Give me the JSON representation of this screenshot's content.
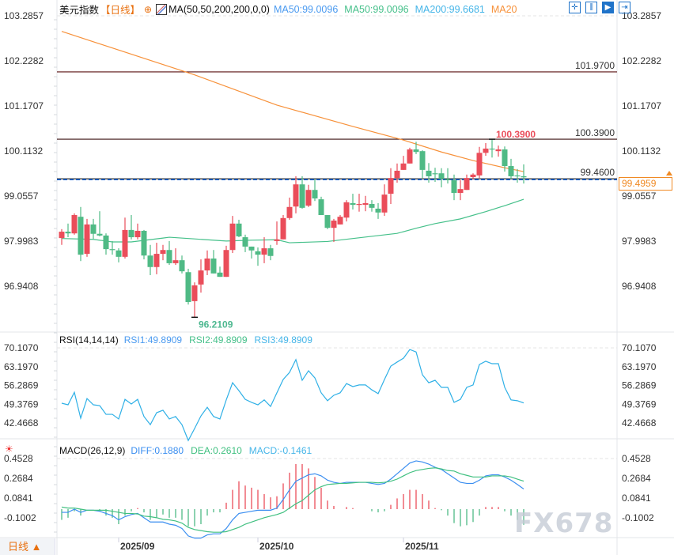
{
  "header": {
    "title": "美元指数",
    "period_tag": "【日线】",
    "ma_params": "MA(50,50,200,200,0,0)",
    "legends": [
      {
        "text": "MA50:99.0096",
        "color": "#4a9af0"
      },
      {
        "text": "MA50:99.0096",
        "color": "#45c08a"
      },
      {
        "text": "MA200:99.6681",
        "color": "#45b5e8"
      },
      {
        "text": "MA20",
        "color": "#f7913a"
      }
    ]
  },
  "toolbar": {
    "icons": [
      "crosshair-icon",
      "bar-range-icon",
      "play-icon",
      "exit-icon"
    ]
  },
  "rsi_header": {
    "title": "RSI(14,14,14)",
    "values": [
      {
        "text": "RSI1:49.8909",
        "color": "#4a9af0"
      },
      {
        "text": "RSI2:49.8909",
        "color": "#45c08a"
      },
      {
        "text": "RSI3:49.8909",
        "color": "#45b5e8"
      }
    ]
  },
  "macd_header": {
    "title": "MACD(26,12,9)",
    "values": [
      {
        "text": "DIFF:0.1880",
        "color": "#3a8ef0"
      },
      {
        "text": "DEA:0.2610",
        "color": "#40c080"
      },
      {
        "text": "MACD:-0.1461",
        "color": "#45b5e8"
      }
    ]
  },
  "period_button": "日线 ▲",
  "watermark": "FX678",
  "colors": {
    "up": "#ea4d5a",
    "down": "#4fba85",
    "ma_orange": "#f7913a",
    "ma_green": "#45c08a",
    "rsi": "#2fb0e6",
    "diff": "#3a8ef0",
    "dea": "#40c080",
    "accent": "#f08a24"
  },
  "chart_data": [
    {
      "type": "candlestick",
      "name": "美元指数",
      "ylim": [
        96.21,
        103.2857
      ],
      "yticks": [
        "103.2857",
        "102.2282",
        "101.1707",
        "100.1132",
        "99.0557",
        "97.9983",
        "96.9408"
      ],
      "xticks": [
        {
          "index": 9,
          "label": "2025/09"
        },
        {
          "index": 31,
          "label": "2025/10"
        },
        {
          "index": 54,
          "label": "2025/11"
        }
      ],
      "ohlc": [
        [
          98.07,
          98.28,
          97.91,
          98.22
        ],
        [
          98.22,
          98.41,
          98.09,
          98.18
        ],
        [
          98.18,
          98.65,
          98.15,
          98.61
        ],
        [
          98.57,
          98.8,
          97.53,
          97.68
        ],
        [
          97.7,
          98.52,
          97.63,
          98.39
        ],
        [
          98.39,
          98.52,
          98.05,
          98.17
        ],
        [
          98.17,
          98.7,
          98.11,
          98.13
        ],
        [
          98.13,
          98.18,
          97.68,
          97.81
        ],
        [
          97.81,
          98.0,
          97.68,
          97.79
        ],
        [
          97.78,
          97.83,
          97.5,
          97.63
        ],
        [
          97.63,
          98.55,
          97.59,
          98.26
        ],
        [
          98.26,
          98.61,
          98.04,
          98.09
        ],
        [
          98.09,
          98.41,
          98.04,
          98.24
        ],
        [
          98.24,
          98.26,
          97.57,
          97.66
        ],
        [
          97.66,
          97.91,
          97.2,
          97.39
        ],
        [
          97.39,
          97.96,
          97.22,
          97.7
        ],
        [
          97.7,
          97.91,
          97.55,
          97.79
        ],
        [
          97.79,
          98.0,
          97.44,
          97.48
        ],
        [
          97.48,
          97.83,
          97.44,
          97.55
        ],
        [
          97.55,
          97.66,
          97.24,
          97.29
        ],
        [
          97.27,
          97.35,
          96.51,
          96.57
        ],
        [
          96.59,
          97.03,
          96.2109,
          96.96
        ],
        [
          96.98,
          97.57,
          96.79,
          97.31
        ],
        [
          97.31,
          97.78,
          97.2,
          97.59
        ],
        [
          97.59,
          97.79,
          97.24,
          97.24
        ],
        [
          97.26,
          97.4,
          97.16,
          97.16
        ],
        [
          97.16,
          97.89,
          97.16,
          97.79
        ],
        [
          97.79,
          98.59,
          97.72,
          98.41
        ],
        [
          98.41,
          98.5,
          98.09,
          98.11
        ],
        [
          98.09,
          98.15,
          97.74,
          97.87
        ],
        [
          97.87,
          97.87,
          97.59,
          97.78
        ],
        [
          97.76,
          97.85,
          97.42,
          97.68
        ],
        [
          97.68,
          98.09,
          97.48,
          97.83
        ],
        [
          97.83,
          97.91,
          97.55,
          97.65
        ],
        [
          98.0,
          98.46,
          97.91,
          98.04
        ],
        [
          98.04,
          98.61,
          98.04,
          98.54
        ],
        [
          98.54,
          99.02,
          98.5,
          98.8
        ],
        [
          98.81,
          99.52,
          98.65,
          99.33
        ],
        [
          99.33,
          99.52,
          98.76,
          98.78
        ],
        [
          98.83,
          99.32,
          98.8,
          99.2
        ],
        [
          99.2,
          99.45,
          98.94,
          99.0
        ],
        [
          98.98,
          99.04,
          98.61,
          98.61
        ],
        [
          98.61,
          98.61,
          98.28,
          98.31
        ],
        [
          98.31,
          98.52,
          97.98,
          98.48
        ],
        [
          98.39,
          98.61,
          98.39,
          98.57
        ],
        [
          98.55,
          98.96,
          98.46,
          98.91
        ],
        [
          98.89,
          99.11,
          98.74,
          98.85
        ],
        [
          98.85,
          99.11,
          98.69,
          98.87
        ],
        [
          98.85,
          99.06,
          98.7,
          98.89
        ],
        [
          98.87,
          98.96,
          98.69,
          98.78
        ],
        [
          98.76,
          98.89,
          98.52,
          98.67
        ],
        [
          98.67,
          99.33,
          98.59,
          99.09
        ],
        [
          99.11,
          99.71,
          98.87,
          99.48
        ],
        [
          99.48,
          99.82,
          99.37,
          99.65
        ],
        [
          99.67,
          100.0,
          99.67,
          99.82
        ],
        [
          99.82,
          100.19,
          99.82,
          100.15
        ],
        [
          100.15,
          100.33,
          100.04,
          100.09
        ],
        [
          100.11,
          100.13,
          99.48,
          99.67
        ],
        [
          99.65,
          99.83,
          99.37,
          99.52
        ],
        [
          99.59,
          99.72,
          99.39,
          99.58
        ],
        [
          99.59,
          99.71,
          99.26,
          99.46
        ],
        [
          99.45,
          99.71,
          99.35,
          99.43
        ],
        [
          99.43,
          99.56,
          98.96,
          99.13
        ],
        [
          99.13,
          99.43,
          98.96,
          99.22
        ],
        [
          99.2,
          99.56,
          99.2,
          99.48
        ],
        [
          99.5,
          99.59,
          99.45,
          99.56
        ],
        [
          99.54,
          100.21,
          99.48,
          100.07
        ],
        [
          100.07,
          100.3,
          100.0,
          100.17
        ],
        [
          100.17,
          100.39,
          99.96,
          100.15
        ],
        [
          100.11,
          100.24,
          99.98,
          100.15
        ],
        [
          100.15,
          100.22,
          99.63,
          99.76
        ],
        [
          99.76,
          99.93,
          99.46,
          99.52
        ],
        [
          99.54,
          99.69,
          99.37,
          99.52
        ],
        [
          99.52,
          99.8,
          99.35,
          99.4959
        ]
      ],
      "ma_orange": [
        [
          0,
          102.92
        ],
        [
          21,
          101.9
        ],
        [
          34,
          101.19
        ],
        [
          46,
          100.69
        ],
        [
          54,
          100.37
        ],
        [
          60,
          100.09
        ],
        [
          65,
          99.89
        ],
        [
          70,
          99.72
        ],
        [
          73,
          99.63
        ]
      ],
      "ma_green": [
        [
          0,
          98.06
        ],
        [
          5,
          98.04
        ],
        [
          8,
          97.98
        ],
        [
          11,
          97.98
        ],
        [
          16,
          98.07
        ],
        [
          17,
          98.09
        ],
        [
          21,
          98.05
        ],
        [
          26,
          98.0
        ],
        [
          30,
          98.02
        ],
        [
          34,
          98.03
        ],
        [
          36,
          97.96
        ],
        [
          42,
          97.99
        ],
        [
          46,
          98.06
        ],
        [
          53,
          98.18
        ],
        [
          56,
          98.3
        ],
        [
          59,
          98.41
        ],
        [
          63,
          98.52
        ],
        [
          67,
          98.69
        ],
        [
          70,
          98.83
        ],
        [
          73,
          98.98
        ]
      ],
      "hlines": [
        {
          "value": 101.97,
          "label": "101.9700",
          "color": "#5a1010"
        },
        {
          "value": 100.39,
          "label": "100.3900",
          "color": "#3a1010"
        },
        {
          "value": 99.46,
          "label": "99.4600",
          "color": "#111111"
        }
      ],
      "last_price": {
        "value": 99.4959,
        "label": "99.4959"
      },
      "high_marker": {
        "index": 68,
        "value": 100.39,
        "label": "100.3900"
      },
      "low_marker": {
        "index": 21,
        "value": 96.2109,
        "label": "96.2109"
      }
    },
    {
      "type": "line",
      "name": "RSI",
      "yticks": [
        "70.1070",
        "63.1970",
        "56.2869",
        "49.3769",
        "42.4668"
      ],
      "values": [
        49.79,
        49.2,
        53.8,
        44.3,
        51.5,
        49.2,
        48.9,
        45.7,
        45.7,
        44.0,
        51.2,
        49.5,
        51.2,
        44.9,
        41.9,
        46.3,
        47.2,
        44.0,
        44.9,
        41.9,
        36.1,
        40.5,
        45.1,
        48.3,
        44.9,
        44.0,
        51.0,
        57.3,
        54.4,
        51.2,
        50.1,
        49.2,
        51.0,
        48.6,
        53.6,
        58.5,
        61.1,
        65.8,
        58.2,
        61.7,
        59.1,
        53.6,
        50.7,
        52.7,
        53.6,
        57.0,
        55.9,
        56.5,
        56.5,
        54.7,
        53.3,
        58.5,
        63.4,
        64.9,
        66.3,
        69.5,
        68.6,
        60.2,
        57.3,
        58.2,
        55.6,
        55.6,
        50.1,
        51.2,
        55.6,
        56.5,
        64.0,
        65.2,
        64.3,
        64.3,
        55.6,
        51.0,
        50.7,
        49.89
      ]
    },
    {
      "type": "bar+line",
      "name": "MACD",
      "yticks": [
        "0.4528",
        "0.2684",
        "0.0841",
        "-0.1002"
      ],
      "diff": [
        -0.03,
        -0.03,
        0.0,
        -0.03,
        -0.01,
        -0.01,
        -0.02,
        -0.04,
        -0.06,
        -0.1,
        -0.07,
        -0.05,
        -0.04,
        -0.08,
        -0.12,
        -0.12,
        -0.12,
        -0.14,
        -0.15,
        -0.18,
        -0.25,
        -0.27,
        -0.27,
        -0.24,
        -0.23,
        -0.23,
        -0.18,
        -0.1,
        -0.04,
        -0.03,
        -0.02,
        -0.01,
        -0.01,
        -0.01,
        0.01,
        0.09,
        0.18,
        0.26,
        0.29,
        0.32,
        0.33,
        0.31,
        0.27,
        0.25,
        0.24,
        0.25,
        0.25,
        0.25,
        0.25,
        0.24,
        0.23,
        0.24,
        0.28,
        0.33,
        0.38,
        0.43,
        0.45,
        0.44,
        0.42,
        0.39,
        0.37,
        0.33,
        0.29,
        0.25,
        0.24,
        0.24,
        0.27,
        0.31,
        0.32,
        0.32,
        0.3,
        0.27,
        0.23,
        0.188
      ],
      "dea": [
        0.02,
        0.01,
        0.01,
        0.0,
        -0.01,
        -0.01,
        -0.01,
        -0.01,
        -0.02,
        -0.03,
        -0.04,
        -0.04,
        -0.045,
        -0.065,
        -0.07,
        -0.08,
        -0.095,
        -0.1,
        -0.11,
        -0.13,
        -0.17,
        -0.19,
        -0.2,
        -0.21,
        -0.215,
        -0.215,
        -0.21,
        -0.19,
        -0.17,
        -0.14,
        -0.12,
        -0.1,
        -0.08,
        -0.065,
        -0.05,
        -0.03,
        0.01,
        0.05,
        0.08,
        0.13,
        0.18,
        0.21,
        0.23,
        0.235,
        0.24,
        0.24,
        0.245,
        0.25,
        0.25,
        0.25,
        0.245,
        0.25,
        0.26,
        0.28,
        0.31,
        0.34,
        0.36,
        0.37,
        0.38,
        0.385,
        0.375,
        0.36,
        0.355,
        0.33,
        0.315,
        0.3,
        0.3,
        0.3,
        0.31,
        0.31,
        0.31,
        0.3,
        0.28,
        0.261
      ]
    }
  ]
}
